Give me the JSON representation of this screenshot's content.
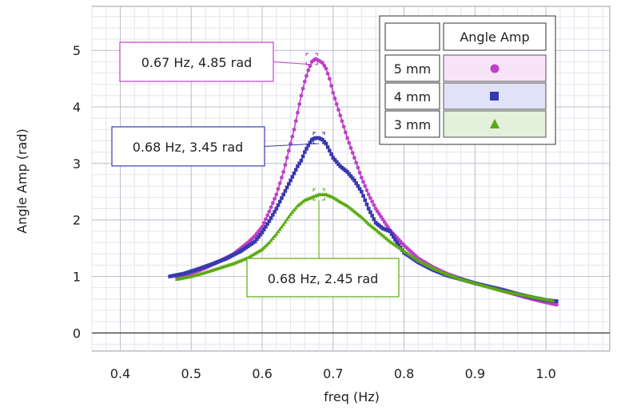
{
  "chart_data": {
    "type": "scatter",
    "title": "",
    "xlabel": "freq (Hz)",
    "ylabel": "Angle Amp (rad)",
    "xlim": [
      0.36,
      1.09
    ],
    "ylim": [
      -0.32,
      5.78
    ],
    "x_ticks": [
      0.4,
      0.5,
      0.6,
      0.7,
      0.8,
      0.9,
      1.0
    ],
    "x_tick_labels": [
      "0.4",
      "0.5",
      "0.6",
      "0.7",
      "0.8",
      "0.9",
      "1.0"
    ],
    "y_ticks": [
      0,
      1,
      2,
      3,
      4,
      5
    ],
    "y_tick_labels": [
      "0",
      "1",
      "2",
      "3",
      "4",
      "5"
    ],
    "grid": true,
    "legend_placement": "top-right",
    "legend_header": "Angle Amp",
    "series": [
      {
        "name": "5 mm",
        "color": "#c040c8",
        "marker": "circle",
        "x": [
          0.48,
          0.5,
          0.52,
          0.54,
          0.56,
          0.58,
          0.59,
          0.6,
          0.61,
          0.62,
          0.63,
          0.64,
          0.645,
          0.65,
          0.655,
          0.66,
          0.665,
          0.67,
          0.675,
          0.68,
          0.685,
          0.69,
          0.695,
          0.7,
          0.71,
          0.72,
          0.73,
          0.74,
          0.75,
          0.76,
          0.78,
          0.8,
          0.82,
          0.84,
          0.86,
          0.88,
          0.9,
          0.92,
          0.94,
          0.96,
          0.98,
          1.0,
          1.015
        ],
        "y": [
          0.97,
          1.05,
          1.15,
          1.27,
          1.4,
          1.6,
          1.72,
          1.88,
          2.15,
          2.45,
          2.85,
          3.35,
          3.6,
          3.9,
          4.2,
          4.45,
          4.65,
          4.8,
          4.85,
          4.82,
          4.78,
          4.68,
          4.5,
          4.25,
          3.85,
          3.45,
          3.1,
          2.75,
          2.45,
          2.2,
          1.82,
          1.55,
          1.32,
          1.17,
          1.05,
          0.96,
          0.88,
          0.81,
          0.74,
          0.67,
          0.6,
          0.54,
          0.5
        ]
      },
      {
        "name": "4 mm",
        "color": "#3838b0",
        "marker": "square",
        "x": [
          0.47,
          0.49,
          0.51,
          0.53,
          0.55,
          0.57,
          0.59,
          0.6,
          0.61,
          0.62,
          0.63,
          0.64,
          0.65,
          0.655,
          0.66,
          0.665,
          0.67,
          0.675,
          0.68,
          0.685,
          0.69,
          0.7,
          0.71,
          0.72,
          0.73,
          0.74,
          0.75,
          0.76,
          0.77,
          0.78,
          0.79,
          0.8,
          0.82,
          0.84,
          0.86,
          0.88,
          0.9,
          0.92,
          0.94,
          0.96,
          0.98,
          1.0,
          1.015
        ],
        "y": [
          1.0,
          1.05,
          1.13,
          1.22,
          1.32,
          1.45,
          1.62,
          1.78,
          1.98,
          2.2,
          2.45,
          2.7,
          2.95,
          3.05,
          3.2,
          3.32,
          3.42,
          3.45,
          3.45,
          3.42,
          3.35,
          3.1,
          2.95,
          2.85,
          2.7,
          2.5,
          2.2,
          1.95,
          1.85,
          1.8,
          1.6,
          1.42,
          1.25,
          1.12,
          1.02,
          0.95,
          0.88,
          0.82,
          0.76,
          0.69,
          0.63,
          0.58,
          0.56
        ]
      },
      {
        "name": "3 mm",
        "color": "#5aaa10",
        "marker": "triangle",
        "x": [
          0.48,
          0.5,
          0.52,
          0.54,
          0.56,
          0.58,
          0.6,
          0.61,
          0.62,
          0.63,
          0.64,
          0.65,
          0.66,
          0.67,
          0.68,
          0.69,
          0.7,
          0.71,
          0.72,
          0.73,
          0.74,
          0.75,
          0.76,
          0.78,
          0.8,
          0.82,
          0.84,
          0.86,
          0.88,
          0.9,
          0.92,
          0.94,
          0.96,
          0.98,
          1.0,
          1.01
        ],
        "y": [
          0.95,
          1.0,
          1.07,
          1.15,
          1.23,
          1.33,
          1.48,
          1.6,
          1.75,
          1.92,
          2.1,
          2.25,
          2.35,
          2.4,
          2.45,
          2.45,
          2.4,
          2.32,
          2.25,
          2.15,
          2.05,
          1.93,
          1.83,
          1.62,
          1.45,
          1.28,
          1.15,
          1.04,
          0.95,
          0.88,
          0.81,
          0.74,
          0.69,
          0.64,
          0.59,
          0.57
        ]
      }
    ],
    "annotations": [
      {
        "text": "0.67 Hz, 4.85 rad",
        "series": "5 mm",
        "x": 0.67,
        "y": 4.85
      },
      {
        "text": "0.68 Hz, 3.45 rad",
        "series": "4 mm",
        "x": 0.68,
        "y": 3.45
      },
      {
        "text": "0.68 Hz, 2.45 rad",
        "series": "3 mm",
        "x": 0.68,
        "y": 2.45
      }
    ]
  }
}
